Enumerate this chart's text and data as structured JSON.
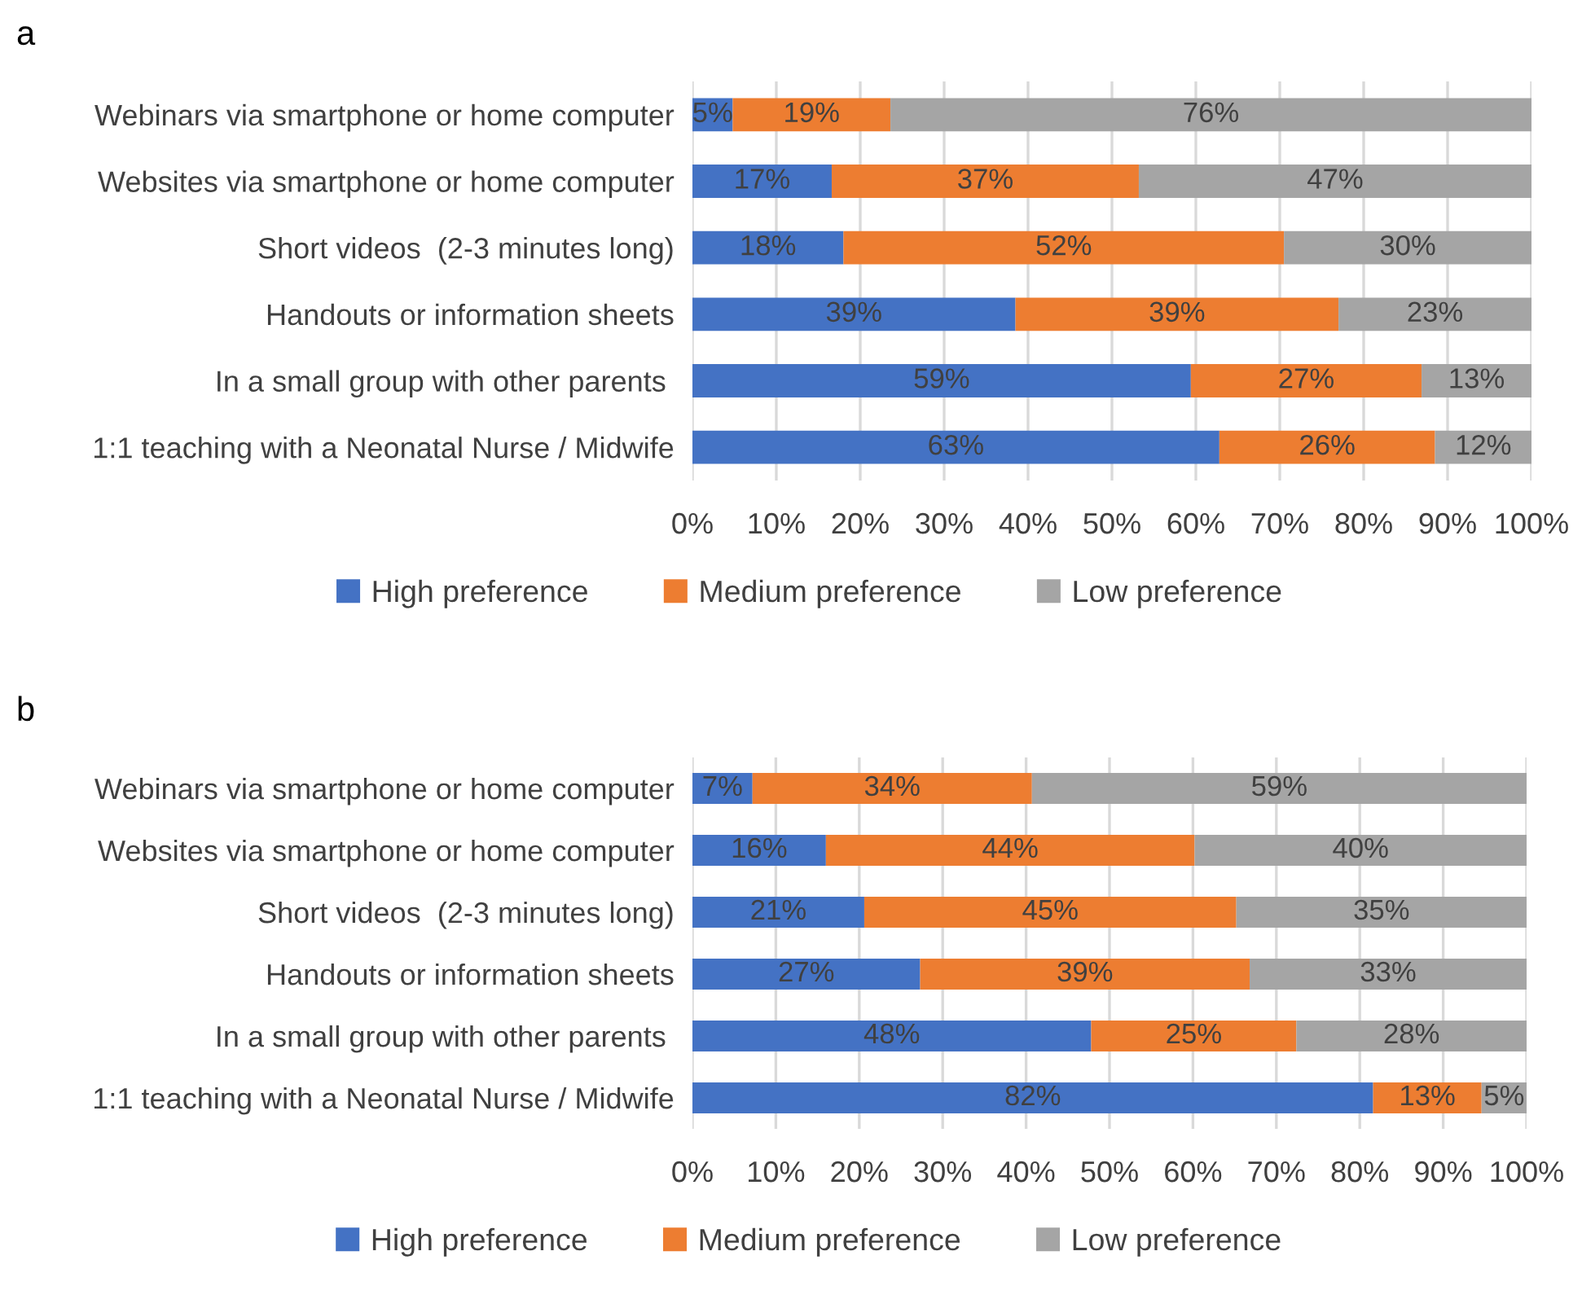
{
  "chart_data": [
    {
      "type": "bar",
      "title": "a",
      "orientation": "horizontal",
      "stacked": true,
      "categories": [
        "Webinars via smartphone or home computer",
        "Websites via smartphone or home computer",
        "Short videos  (2-3 minutes long)",
        "Handouts or information sheets",
        "In a small group with other parents ",
        "1:1 teaching with a Neonatal Nurse / Midwife"
      ],
      "series": [
        {
          "name": "High preference",
          "color": "#4472c4",
          "values": [
            4.8,
            16.6,
            18.0,
            38.5,
            59.4,
            62.8
          ],
          "value_labels": [
            "5%",
            "17%",
            "18%",
            "39%",
            "59%",
            "63%"
          ]
        },
        {
          "name": "Medium preference",
          "color": "#ed7d31",
          "values": [
            18.8,
            36.6,
            52.5,
            38.5,
            27.5,
            25.7
          ],
          "value_labels": [
            "19%",
            "37%",
            "52%",
            "39%",
            "27%",
            "26%"
          ]
        },
        {
          "name": "Low preference",
          "color": "#a5a5a5",
          "values": [
            76.4,
            46.8,
            29.5,
            23.0,
            13.1,
            11.5
          ],
          "value_labels": [
            "76%",
            "47%",
            "30%",
            "23%",
            "13%",
            "12%"
          ]
        }
      ],
      "xlim": [
        0,
        100
      ],
      "xticks": [
        {
          "value": 0,
          "label": "0%"
        },
        {
          "value": 10,
          "label": "10%"
        },
        {
          "value": 20,
          "label": "20%"
        },
        {
          "value": 30,
          "label": "30%"
        },
        {
          "value": 40,
          "label": "40%"
        },
        {
          "value": 50,
          "label": "50%"
        },
        {
          "value": 60,
          "label": "60%"
        },
        {
          "value": 70,
          "label": "70%"
        },
        {
          "value": 80,
          "label": "80%"
        },
        {
          "value": 90,
          "label": "90%"
        },
        {
          "value": 100,
          "label": "100%"
        }
      ],
      "grid": "x",
      "legend": "bottom"
    },
    {
      "type": "bar",
      "title": "b",
      "orientation": "horizontal",
      "stacked": true,
      "categories": [
        "Webinars via smartphone or home computer",
        "Websites via smartphone or home computer",
        "Short videos  (2-3 minutes long)",
        "Handouts or information sheets",
        "In a small group with other parents ",
        "1:1 teaching with a Neonatal Nurse / Midwife"
      ],
      "series": [
        {
          "name": "High preference",
          "color": "#4472c4",
          "values": [
            7.2,
            16.0,
            20.6,
            27.3,
            47.8,
            81.6
          ],
          "value_labels": [
            "7%",
            "16%",
            "21%",
            "27%",
            "48%",
            "82%"
          ]
        },
        {
          "name": "Medium preference",
          "color": "#ed7d31",
          "values": [
            33.5,
            44.2,
            44.6,
            39.5,
            24.6,
            13.0
          ],
          "value_labels": [
            "34%",
            "44%",
            "45%",
            "39%",
            "25%",
            "13%"
          ]
        },
        {
          "name": "Low preference",
          "color": "#a5a5a5",
          "values": [
            59.3,
            39.8,
            34.8,
            33.2,
            27.6,
            5.4
          ],
          "value_labels": [
            "59%",
            "40%",
            "35%",
            "33%",
            "28%",
            "5%"
          ]
        }
      ],
      "xlim": [
        0,
        100
      ],
      "xticks": [
        {
          "value": 0,
          "label": "0%"
        },
        {
          "value": 10,
          "label": "10%"
        },
        {
          "value": 20,
          "label": "20%"
        },
        {
          "value": 30,
          "label": "30%"
        },
        {
          "value": 40,
          "label": "40%"
        },
        {
          "value": 50,
          "label": "50%"
        },
        {
          "value": 60,
          "label": "60%"
        },
        {
          "value": 70,
          "label": "70%"
        },
        {
          "value": 80,
          "label": "80%"
        },
        {
          "value": 90,
          "label": "90%"
        },
        {
          "value": 100,
          "label": "100%"
        }
      ],
      "grid": "x",
      "legend": "bottom"
    }
  ]
}
